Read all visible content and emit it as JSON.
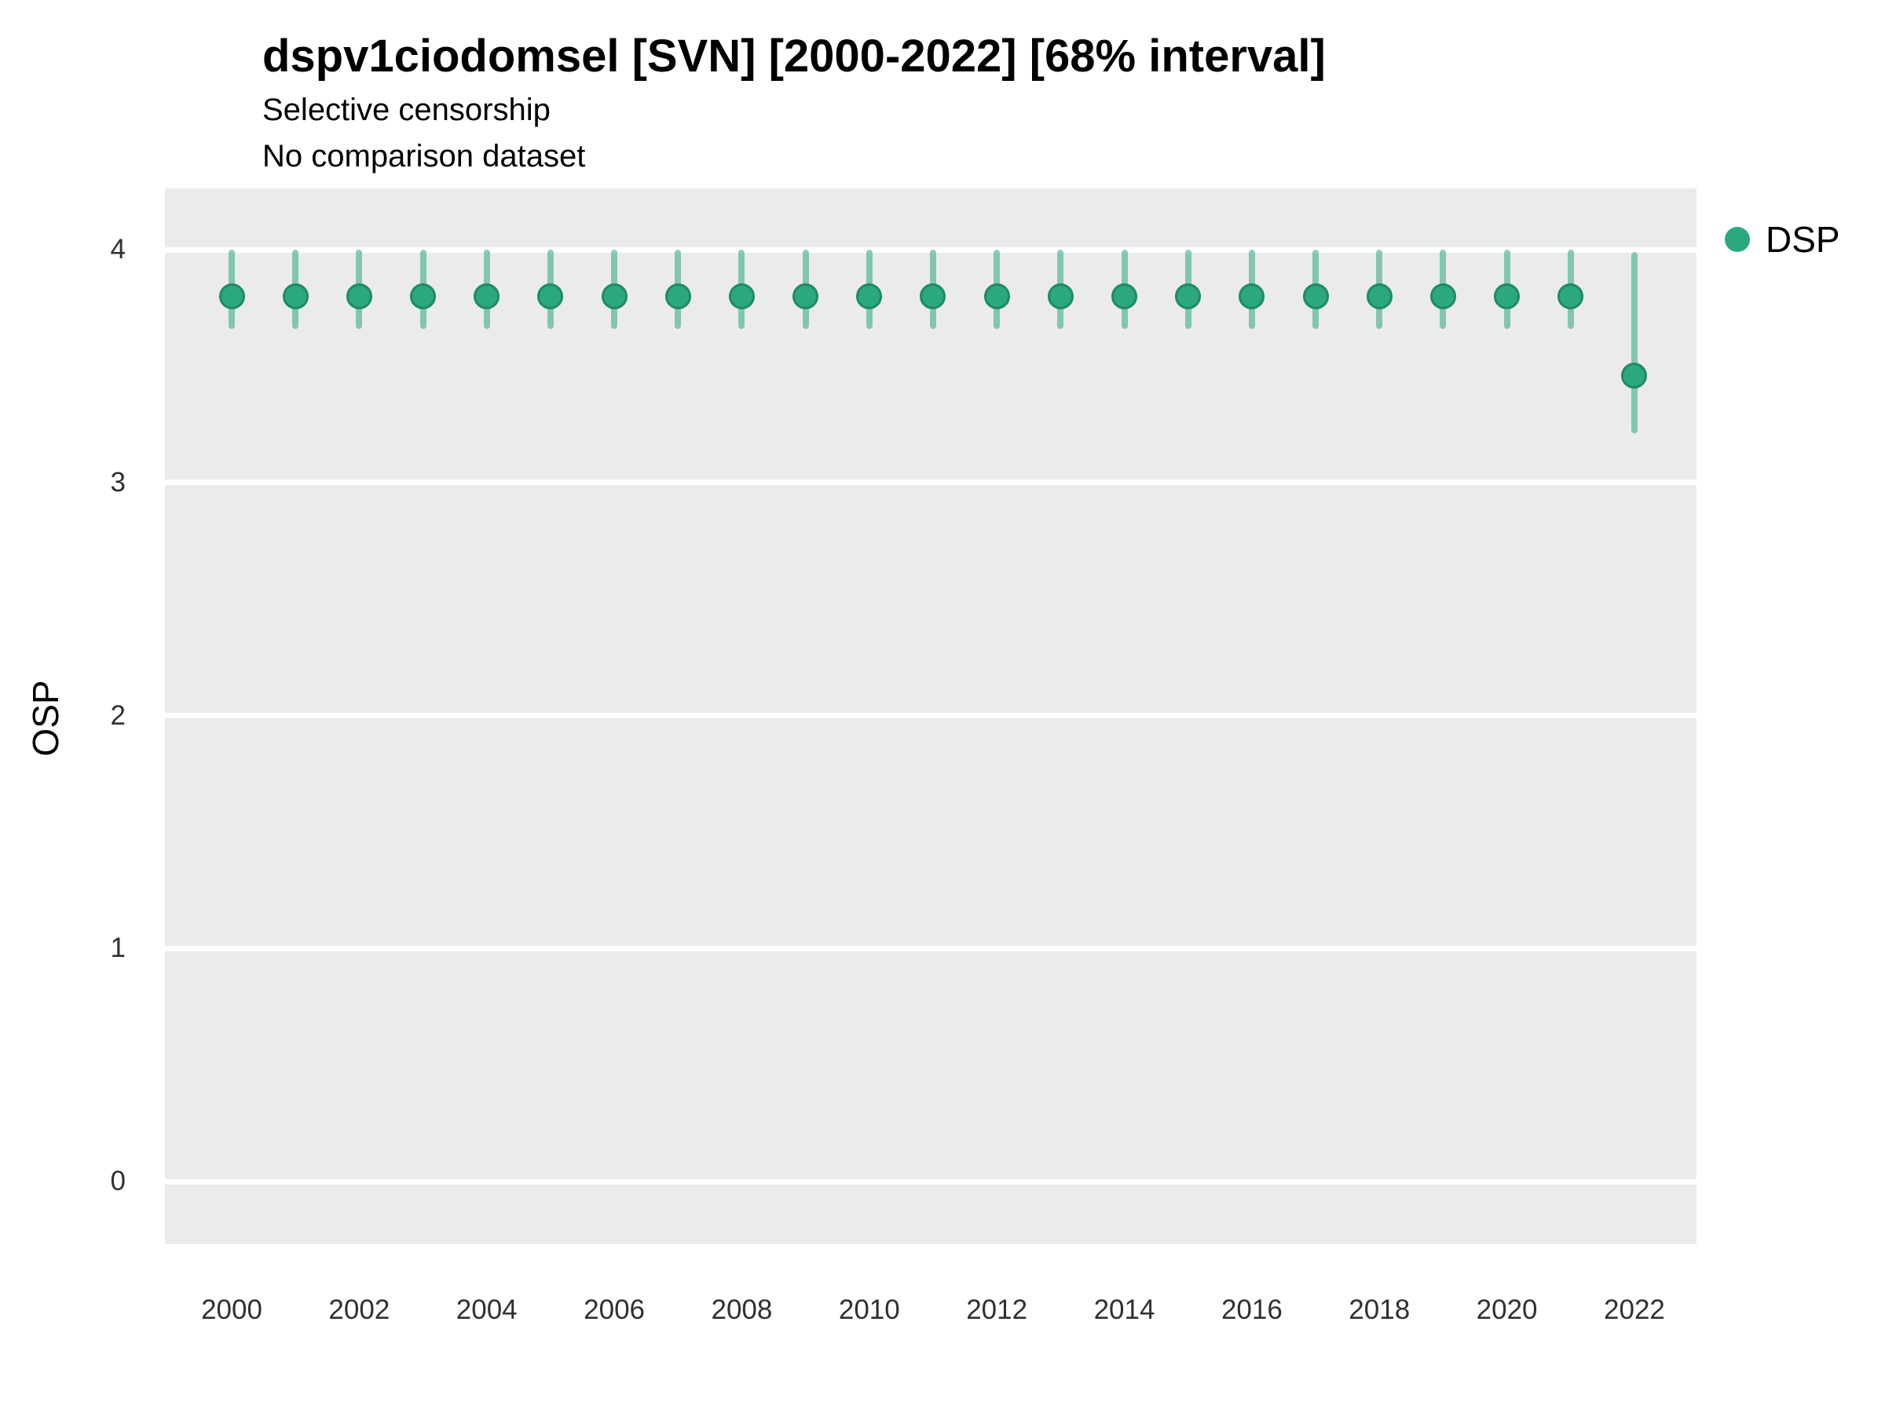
{
  "header": {
    "title": "dspv1ciodomsel [SVN] [2000-2022] [68% interval]",
    "subtitle1": "Selective censorship",
    "subtitle2": "No comparison dataset"
  },
  "legend": {
    "items": [
      {
        "label": "DSP",
        "color": "#2BA87E"
      }
    ]
  },
  "chart_data": {
    "type": "scatter",
    "title": "dspv1ciodomsel [SVN] [2000-2022] [68% interval]",
    "subtitle": "Selective censorship",
    "caption": "No comparison dataset",
    "xlabel": "",
    "ylabel": "OSP",
    "interval": "68%",
    "xlim": [
      1998.9,
      2023.0
    ],
    "ylim": [
      -0.26,
      4.26
    ],
    "x_ticks": [
      2000,
      2002,
      2004,
      2006,
      2008,
      2010,
      2012,
      2014,
      2016,
      2018,
      2020,
      2022
    ],
    "y_ticks": [
      0,
      1,
      2,
      3,
      4
    ],
    "grid": "horizontal-major-only",
    "legend_position": "right-top",
    "panel_background": "#EBEBEB",
    "gridline_color": "#FFFFFF",
    "series": [
      {
        "name": "DSP",
        "color": "#2BA87E",
        "stroke": "#1E8A66",
        "interval_color": "#2BA87E8C",
        "points": [
          {
            "year": 2000,
            "value": 3.8,
            "lower": 3.66,
            "upper": 4.0
          },
          {
            "year": 2001,
            "value": 3.8,
            "lower": 3.66,
            "upper": 4.0
          },
          {
            "year": 2002,
            "value": 3.8,
            "lower": 3.66,
            "upper": 4.0
          },
          {
            "year": 2003,
            "value": 3.8,
            "lower": 3.66,
            "upper": 4.0
          },
          {
            "year": 2004,
            "value": 3.8,
            "lower": 3.66,
            "upper": 4.0
          },
          {
            "year": 2005,
            "value": 3.8,
            "lower": 3.66,
            "upper": 4.0
          },
          {
            "year": 2006,
            "value": 3.8,
            "lower": 3.66,
            "upper": 4.0
          },
          {
            "year": 2007,
            "value": 3.8,
            "lower": 3.66,
            "upper": 4.0
          },
          {
            "year": 2008,
            "value": 3.8,
            "lower": 3.66,
            "upper": 4.0
          },
          {
            "year": 2009,
            "value": 3.8,
            "lower": 3.66,
            "upper": 4.0
          },
          {
            "year": 2010,
            "value": 3.8,
            "lower": 3.66,
            "upper": 4.0
          },
          {
            "year": 2011,
            "value": 3.8,
            "lower": 3.66,
            "upper": 4.0
          },
          {
            "year": 2012,
            "value": 3.8,
            "lower": 3.66,
            "upper": 4.0
          },
          {
            "year": 2013,
            "value": 3.8,
            "lower": 3.66,
            "upper": 4.0
          },
          {
            "year": 2014,
            "value": 3.8,
            "lower": 3.66,
            "upper": 4.0
          },
          {
            "year": 2015,
            "value": 3.8,
            "lower": 3.66,
            "upper": 4.0
          },
          {
            "year": 2016,
            "value": 3.8,
            "lower": 3.66,
            "upper": 4.0
          },
          {
            "year": 2017,
            "value": 3.8,
            "lower": 3.66,
            "upper": 4.0
          },
          {
            "year": 2018,
            "value": 3.8,
            "lower": 3.66,
            "upper": 4.0
          },
          {
            "year": 2019,
            "value": 3.8,
            "lower": 3.66,
            "upper": 4.0
          },
          {
            "year": 2020,
            "value": 3.8,
            "lower": 3.66,
            "upper": 4.0
          },
          {
            "year": 2021,
            "value": 3.8,
            "lower": 3.66,
            "upper": 4.0
          },
          {
            "year": 2022,
            "value": 3.46,
            "lower": 3.21,
            "upper": 3.99
          }
        ]
      }
    ]
  }
}
